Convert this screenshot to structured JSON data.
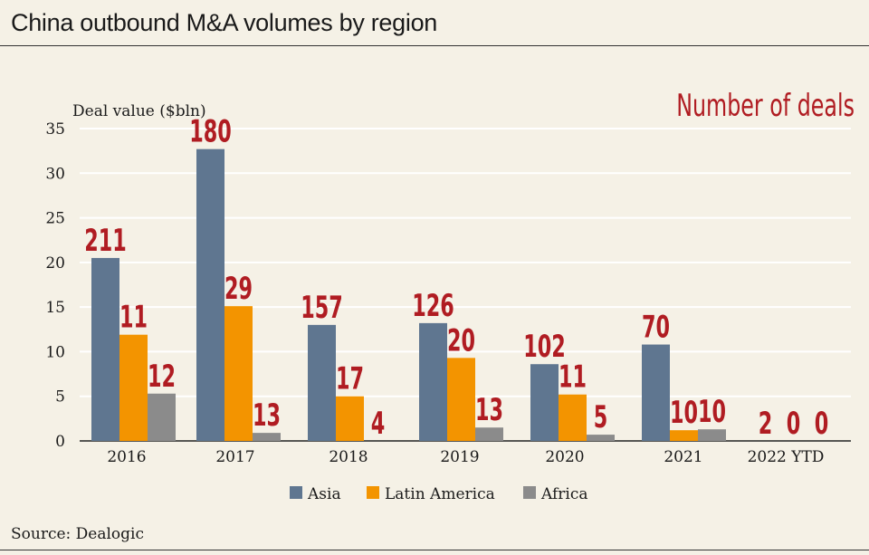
{
  "header": {
    "title": "China outbound M&A volumes by region"
  },
  "footer": {
    "source": "Source: Dealogic"
  },
  "colors": {
    "Asia": "#5f7690",
    "Latin America": "#f39400",
    "Africa": "#8b8b8b",
    "deal_text": "#b01c22",
    "grid": "#ffffff"
  },
  "chart_data": {
    "type": "bar",
    "title": "China outbound M&A volumes by region",
    "ylabel": "Deal value ($bln)",
    "xlabel": "",
    "ylim": [
      0,
      35
    ],
    "yticks": [
      0,
      5,
      10,
      15,
      20,
      25,
      30,
      35
    ],
    "grid": true,
    "legend_position": "bottom",
    "annotation_title": "Number of deals",
    "categories": [
      "2016",
      "2017",
      "2018",
      "2019",
      "2020",
      "2021",
      "2022 YTD"
    ],
    "series": [
      {
        "name": "Asia",
        "values": [
          20.5,
          32.7,
          13.0,
          13.2,
          8.6,
          10.8,
          0
        ],
        "deals": [
          "211",
          "180",
          "157",
          "126",
          "102",
          "70",
          "2"
        ]
      },
      {
        "name": "Latin America",
        "values": [
          11.9,
          15.1,
          5.0,
          9.3,
          5.2,
          1.2,
          0
        ],
        "deals": [
          "11",
          "29",
          "17",
          "20",
          "11",
          "10",
          "0"
        ]
      },
      {
        "name": "Africa",
        "values": [
          5.3,
          0.9,
          0,
          1.5,
          0.7,
          1.3,
          0
        ],
        "deals": [
          "12",
          "13",
          "4",
          "13",
          "5",
          "10",
          "0"
        ]
      }
    ]
  }
}
